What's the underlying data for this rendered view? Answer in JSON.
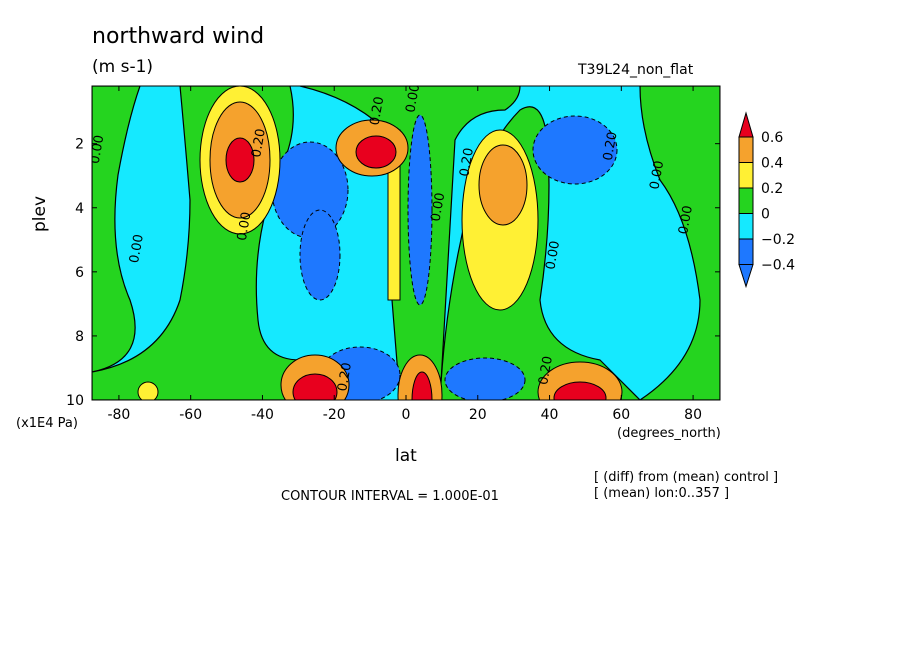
{
  "chart_data": {
    "type": "contour",
    "title": "northward wind",
    "units": "(m s-1)",
    "run_label": "T39L24_non_flat",
    "xlabel": "lat",
    "x_unit": "(degrees_north)",
    "ylabel": "plev",
    "y_unit": "(x1E4 Pa)",
    "x_ticks": [
      "-80",
      "-60",
      "-40",
      "-20",
      "0",
      "20",
      "40",
      "60",
      "80"
    ],
    "x_tick_values": [
      -80,
      -60,
      -40,
      -20,
      0,
      20,
      40,
      60,
      80
    ],
    "y_ticks": [
      "2",
      "4",
      "6",
      "8",
      "10"
    ],
    "y_tick_values": [
      2,
      4,
      6,
      8,
      10
    ],
    "xlim": [
      -87.5,
      87.5
    ],
    "ylim": [
      10,
      0.2
    ],
    "contour_interval_text": "CONTOUR INTERVAL = 1.000E-01",
    "notes": [
      "[ (diff) from (mean) control ]",
      "[ (mean) lon:0..357 ]"
    ],
    "colorbar": {
      "labels": [
        "0.6",
        "0.4",
        "0.2",
        "0",
        "−0.2",
        "−0.4"
      ],
      "colors": [
        "#e8001e",
        "#f5a22d",
        "#fff034",
        "#25d41f",
        "#15e9ff",
        "#1e78ff"
      ]
    },
    "contour_labels": [
      {
        "text": "0.00",
        "x": -85,
        "y": 2.2
      },
      {
        "text": "0.00",
        "x": -74,
        "y": 5.3
      },
      {
        "text": "0.00",
        "x": -44,
        "y": 4.6
      },
      {
        "text": "0.20",
        "x": -40,
        "y": 2.0
      },
      {
        "text": "0.20",
        "x": -7,
        "y": 1.0
      },
      {
        "text": "0.00",
        "x": 3,
        "y": 0.6
      },
      {
        "text": "0.00",
        "x": 10,
        "y": 4.0
      },
      {
        "text": "0.20",
        "x": 18,
        "y": 2.6
      },
      {
        "text": "0.00",
        "x": 42,
        "y": 5.5
      },
      {
        "text": "0.20",
        "x": 58,
        "y": 2.1
      },
      {
        "text": "0.00",
        "x": 71,
        "y": 3.0
      },
      {
        "text": "0.00",
        "x": 79,
        "y": 4.4
      },
      {
        "text": "0.20",
        "x": -16,
        "y": 9.3
      },
      {
        "text": "0.20",
        "x": 40,
        "y": 9.1
      }
    ]
  }
}
